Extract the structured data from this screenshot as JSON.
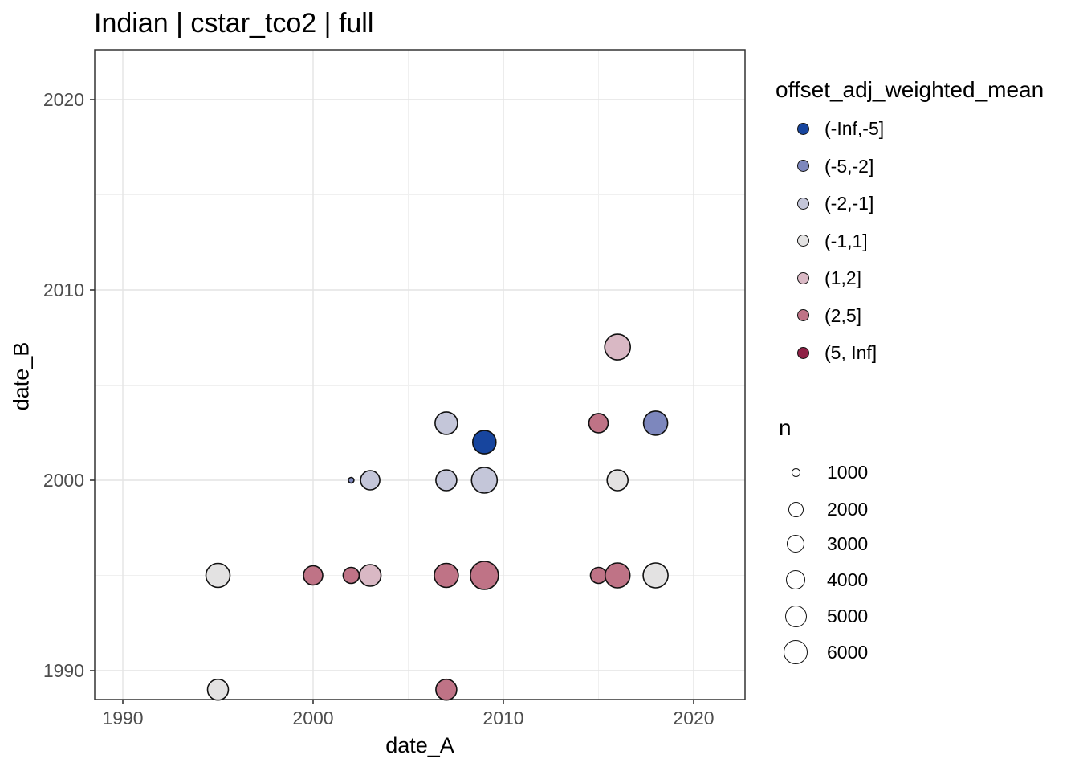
{
  "title": "Indian | cstar_tco2 | full",
  "chart_data": {
    "type": "scatter",
    "title": "Indian | cstar_tco2 | full",
    "xlabel": "date_A",
    "ylabel": "date_B",
    "xlim": [
      1988.5,
      2022.7
    ],
    "ylim": [
      1988.5,
      2022.6
    ],
    "x_ticks": [
      1990,
      2000,
      2010,
      2020
    ],
    "y_ticks": [
      1990,
      2000,
      2010,
      2020
    ],
    "minor_grid_x": [
      1995,
      2005,
      2015
    ],
    "minor_grid_y": [
      1995,
      2005,
      2015
    ],
    "grid": "on",
    "legend_position": "right",
    "color_legend": {
      "title": "offset_adj_weighted_mean",
      "entries": [
        {
          "label": "(-Inf,-5]",
          "color": "#17459e"
        },
        {
          "label": "(-5,-2]",
          "color": "#7d87bd"
        },
        {
          "label": "(-2,-1]",
          "color": "#c4c6d9"
        },
        {
          "label": "(-1,1]",
          "color": "#e3e2e2"
        },
        {
          "label": "(1,2]",
          "color": "#d9b8c4"
        },
        {
          "label": "(2,5]",
          "color": "#bf7386"
        },
        {
          "label": "(5, Inf]",
          "color": "#8e2045"
        }
      ]
    },
    "size_legend": {
      "title": "n",
      "entries": [
        {
          "label": "1000",
          "radius_px": 5.5
        },
        {
          "label": "2000",
          "radius_px": 9.5
        },
        {
          "label": "3000",
          "radius_px": 11
        },
        {
          "label": "4000",
          "radius_px": 12
        },
        {
          "label": "5000",
          "radius_px": 13.5
        },
        {
          "label": "6000",
          "radius_px": 15
        }
      ]
    },
    "points": [
      {
        "date_A": 1995,
        "date_B": 1995,
        "offset_bin": "(-1,1]",
        "n_est": 6200,
        "radius_px": 15
      },
      {
        "date_A": 2000,
        "date_B": 1995,
        "offset_bin": "(2,5]",
        "n_est": 4000,
        "radius_px": 12
      },
      {
        "date_A": 2002,
        "date_B": 1995,
        "offset_bin": "(2,5]",
        "n_est": 2600,
        "radius_px": 10
      },
      {
        "date_A": 2003,
        "date_B": 1995,
        "offset_bin": "(1,2]",
        "n_est": 5100,
        "radius_px": 13.5
      },
      {
        "date_A": 2007,
        "date_B": 1995,
        "offset_bin": "(2,5]",
        "n_est": 6200,
        "radius_px": 15
      },
      {
        "date_A": 2009,
        "date_B": 1995,
        "offset_bin": "(2,5]",
        "n_est": 8600,
        "radius_px": 17.5
      },
      {
        "date_A": 2015,
        "date_B": 1995,
        "offset_bin": "(2,5]",
        "n_est": 2600,
        "radius_px": 10
      },
      {
        "date_A": 2016,
        "date_B": 1995,
        "offset_bin": "(2,5]",
        "n_est": 6600,
        "radius_px": 15.5
      },
      {
        "date_A": 2018,
        "date_B": 1995,
        "offset_bin": "(-1,1]",
        "n_est": 6600,
        "radius_px": 15.5
      },
      {
        "date_A": 1995,
        "date_B": 1989,
        "offset_bin": "(-1,1]",
        "n_est": 4700,
        "radius_px": 13
      },
      {
        "date_A": 2007,
        "date_B": 1989,
        "offset_bin": "(2,5]",
        "n_est": 4700,
        "radius_px": 13
      },
      {
        "date_A": 2002,
        "date_B": 2000,
        "offset_bin": "(-5,-2]",
        "n_est": 400,
        "radius_px": 3.5
      },
      {
        "date_A": 2003,
        "date_B": 2000,
        "offset_bin": "(-2,-1]",
        "n_est": 4000,
        "radius_px": 12
      },
      {
        "date_A": 2007,
        "date_B": 2000,
        "offset_bin": "(-2,-1]",
        "n_est": 4700,
        "radius_px": 13
      },
      {
        "date_A": 2009,
        "date_B": 2000,
        "offset_bin": "(-2,-1]",
        "n_est": 7000,
        "radius_px": 16
      },
      {
        "date_A": 2016,
        "date_B": 2000,
        "offset_bin": "(-1,1]",
        "n_est": 4700,
        "radius_px": 13
      },
      {
        "date_A": 2007,
        "date_B": 2003,
        "offset_bin": "(-2,-1]",
        "n_est": 5400,
        "radius_px": 14
      },
      {
        "date_A": 2009,
        "date_B": 2002,
        "offset_bin": "(-Inf,-5]",
        "n_est": 5800,
        "radius_px": 14.5
      },
      {
        "date_A": 2015,
        "date_B": 2003,
        "offset_bin": "(2,5]",
        "n_est": 4000,
        "radius_px": 12
      },
      {
        "date_A": 2018,
        "date_B": 2003,
        "offset_bin": "(-5,-2]",
        "n_est": 6200,
        "radius_px": 15
      },
      {
        "date_A": 2016,
        "date_B": 2007,
        "offset_bin": "(1,2]",
        "n_est": 7000,
        "radius_px": 16
      }
    ],
    "style_colors": {
      "panel_border": "#333333",
      "grid_major": "#e4e4e4",
      "grid_minor": "#f0f0f0",
      "tick_mark": "#333333",
      "tick_text": "#4d4d4d",
      "point_stroke": "#111111"
    }
  }
}
